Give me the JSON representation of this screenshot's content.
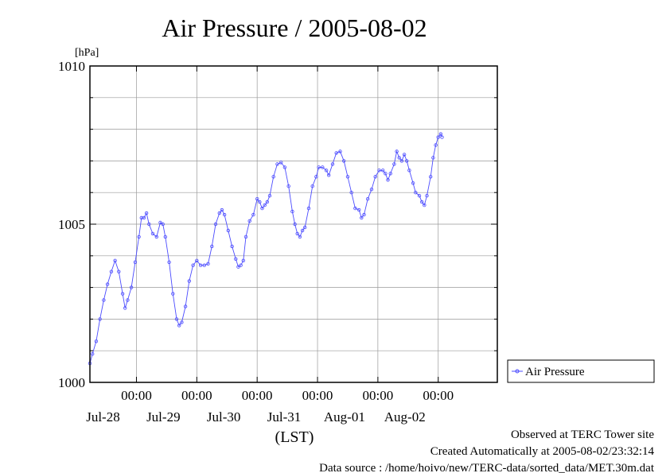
{
  "chart_data": {
    "type": "line",
    "title": "Air Pressure / 2005-08-02",
    "y_unit": "[hPa]",
    "x_axis_label": "(LST)",
    "ylim": [
      1000,
      1010
    ],
    "y_major_ticks": [
      1000,
      1005,
      1010
    ],
    "y_minor_step": 1,
    "xlim": [
      "2005-07-27T05:30",
      "2005-08-02T23:30"
    ],
    "x_tick_times": [
      "2005-07-28T00:00",
      "2005-07-29T00:00",
      "2005-07-30T00:00",
      "2005-07-31T00:00",
      "2005-08-01T00:00",
      "2005-08-02T00:00"
    ],
    "x_tick_time_labels": [
      "00:00",
      "00:00",
      "00:00",
      "00:00",
      "00:00",
      "00:00"
    ],
    "x_date_labels": [
      "Jul-28",
      "Jul-29",
      "Jul-30",
      "Jul-31",
      "Aug-01",
      "Aug-02"
    ],
    "x_date_label_times": [
      "2005-07-28T00:00",
      "2005-07-29T00:00",
      "2005-07-30T00:00",
      "2005-07-31T00:00",
      "2005-08-01T00:00",
      "2005-08-02T00:00"
    ],
    "grid": true,
    "legend_position": "right",
    "series": [
      {
        "name": "Air Pressure",
        "color": "#4b4bff",
        "marker": "circle",
        "points": [
          [
            "2005-07-27T05:30",
            1000.6
          ],
          [
            "2005-07-27T06:30",
            1000.9
          ],
          [
            "2005-07-27T08:00",
            1001.3
          ],
          [
            "2005-07-27T09:30",
            1002.0
          ],
          [
            "2005-07-27T11:00",
            1002.6
          ],
          [
            "2005-07-27T12:30",
            1003.1
          ],
          [
            "2005-07-27T14:00",
            1003.5
          ],
          [
            "2005-07-27T15:30",
            1003.85
          ],
          [
            "2005-07-27T17:00",
            1003.5
          ],
          [
            "2005-07-27T18:30",
            1002.8
          ],
          [
            "2005-07-27T19:30",
            1002.35
          ],
          [
            "2005-07-27T20:30",
            1002.6
          ],
          [
            "2005-07-27T22:00",
            1003.0
          ],
          [
            "2005-07-27T23:30",
            1003.8
          ],
          [
            "2005-07-28T01:00",
            1004.6
          ],
          [
            "2005-07-28T02:00",
            1005.2
          ],
          [
            "2005-07-28T03:00",
            1005.2
          ],
          [
            "2005-07-28T04:00",
            1005.35
          ],
          [
            "2005-07-28T05:00",
            1005.0
          ],
          [
            "2005-07-28T06:30",
            1004.7
          ],
          [
            "2005-07-28T08:00",
            1004.6
          ],
          [
            "2005-07-28T09:30",
            1005.05
          ],
          [
            "2005-07-28T10:30",
            1005.0
          ],
          [
            "2005-07-28T11:30",
            1004.6
          ],
          [
            "2005-07-28T13:00",
            1003.8
          ],
          [
            "2005-07-28T14:30",
            1002.8
          ],
          [
            "2005-07-28T16:00",
            1002.0
          ],
          [
            "2005-07-28T17:00",
            1001.8
          ],
          [
            "2005-07-28T18:00",
            1001.9
          ],
          [
            "2005-07-28T19:30",
            1002.4
          ],
          [
            "2005-07-28T21:00",
            1003.2
          ],
          [
            "2005-07-28T22:30",
            1003.7
          ],
          [
            "2005-07-29T00:00",
            1003.85
          ],
          [
            "2005-07-29T01:30",
            1003.7
          ],
          [
            "2005-07-29T03:00",
            1003.7
          ],
          [
            "2005-07-29T04:30",
            1003.75
          ],
          [
            "2005-07-29T06:00",
            1004.3
          ],
          [
            "2005-07-29T07:30",
            1005.0
          ],
          [
            "2005-07-29T09:00",
            1005.35
          ],
          [
            "2005-07-29T10:00",
            1005.45
          ],
          [
            "2005-07-29T11:00",
            1005.3
          ],
          [
            "2005-07-29T12:30",
            1004.8
          ],
          [
            "2005-07-29T14:00",
            1004.3
          ],
          [
            "2005-07-29T15:30",
            1003.9
          ],
          [
            "2005-07-29T16:30",
            1003.65
          ],
          [
            "2005-07-29T17:30",
            1003.7
          ],
          [
            "2005-07-29T18:30",
            1003.85
          ],
          [
            "2005-07-29T19:30",
            1004.6
          ],
          [
            "2005-07-29T21:00",
            1005.1
          ],
          [
            "2005-07-29T22:30",
            1005.3
          ],
          [
            "2005-07-30T00:00",
            1005.8
          ],
          [
            "2005-07-30T01:00",
            1005.7
          ],
          [
            "2005-07-30T02:00",
            1005.5
          ],
          [
            "2005-07-30T03:00",
            1005.6
          ],
          [
            "2005-07-30T04:00",
            1005.7
          ],
          [
            "2005-07-30T05:00",
            1005.9
          ],
          [
            "2005-07-30T06:30",
            1006.5
          ],
          [
            "2005-07-30T08:00",
            1006.9
          ],
          [
            "2005-07-30T09:30",
            1006.95
          ],
          [
            "2005-07-30T11:00",
            1006.8
          ],
          [
            "2005-07-30T12:30",
            1006.2
          ],
          [
            "2005-07-30T14:00",
            1005.4
          ],
          [
            "2005-07-30T15:00",
            1005.0
          ],
          [
            "2005-07-30T16:00",
            1004.7
          ],
          [
            "2005-07-30T17:00",
            1004.6
          ],
          [
            "2005-07-30T18:00",
            1004.8
          ],
          [
            "2005-07-30T19:00",
            1004.9
          ],
          [
            "2005-07-30T20:30",
            1005.5
          ],
          [
            "2005-07-30T22:00",
            1006.2
          ],
          [
            "2005-07-30T23:30",
            1006.5
          ],
          [
            "2005-07-31T00:30",
            1006.8
          ],
          [
            "2005-07-31T02:00",
            1006.8
          ],
          [
            "2005-07-31T03:30",
            1006.7
          ],
          [
            "2005-07-31T04:30",
            1006.55
          ],
          [
            "2005-07-31T06:00",
            1006.9
          ],
          [
            "2005-07-31T07:30",
            1007.25
          ],
          [
            "2005-07-31T09:00",
            1007.3
          ],
          [
            "2005-07-31T10:30",
            1007.0
          ],
          [
            "2005-07-31T12:00",
            1006.5
          ],
          [
            "2005-07-31T13:30",
            1006.0
          ],
          [
            "2005-07-31T15:00",
            1005.5
          ],
          [
            "2005-07-31T16:30",
            1005.45
          ],
          [
            "2005-07-31T17:30",
            1005.2
          ],
          [
            "2005-07-31T18:30",
            1005.3
          ],
          [
            "2005-07-31T20:00",
            1005.8
          ],
          [
            "2005-07-31T21:30",
            1006.1
          ],
          [
            "2005-07-31T23:00",
            1006.5
          ],
          [
            "2005-08-01T00:30",
            1006.7
          ],
          [
            "2005-08-01T02:00",
            1006.7
          ],
          [
            "2005-08-01T03:00",
            1006.6
          ],
          [
            "2005-08-01T04:00",
            1006.4
          ],
          [
            "2005-08-01T05:00",
            1006.6
          ],
          [
            "2005-08-01T06:30",
            1006.9
          ],
          [
            "2005-08-01T07:30",
            1007.3
          ],
          [
            "2005-08-01T08:30",
            1007.1
          ],
          [
            "2005-08-01T09:30",
            1007.0
          ],
          [
            "2005-08-01T10:30",
            1007.2
          ],
          [
            "2005-08-01T11:30",
            1007.0
          ],
          [
            "2005-08-01T12:30",
            1006.7
          ],
          [
            "2005-08-01T14:00",
            1006.3
          ],
          [
            "2005-08-01T15:00",
            1006.0
          ],
          [
            "2005-08-01T16:30",
            1005.9
          ],
          [
            "2005-08-01T17:30",
            1005.7
          ],
          [
            "2005-08-01T18:30",
            1005.6
          ],
          [
            "2005-08-01T19:30",
            1005.9
          ],
          [
            "2005-08-01T21:00",
            1006.5
          ],
          [
            "2005-08-01T22:00",
            1007.1
          ],
          [
            "2005-08-01T23:00",
            1007.5
          ],
          [
            "2005-08-02T00:00",
            1007.75
          ],
          [
            "2005-08-02T01:00",
            1007.85
          ],
          [
            "2005-08-02T01:30",
            1007.75
          ]
        ]
      }
    ]
  },
  "footer": {
    "observed": "Observed at TERC Tower site",
    "created": "Created Automatically at 2005-08-02/23:32:14",
    "source": "Data source : /home/hoivo/new/TERC-data/sorted_data/MET.30m.dat"
  }
}
